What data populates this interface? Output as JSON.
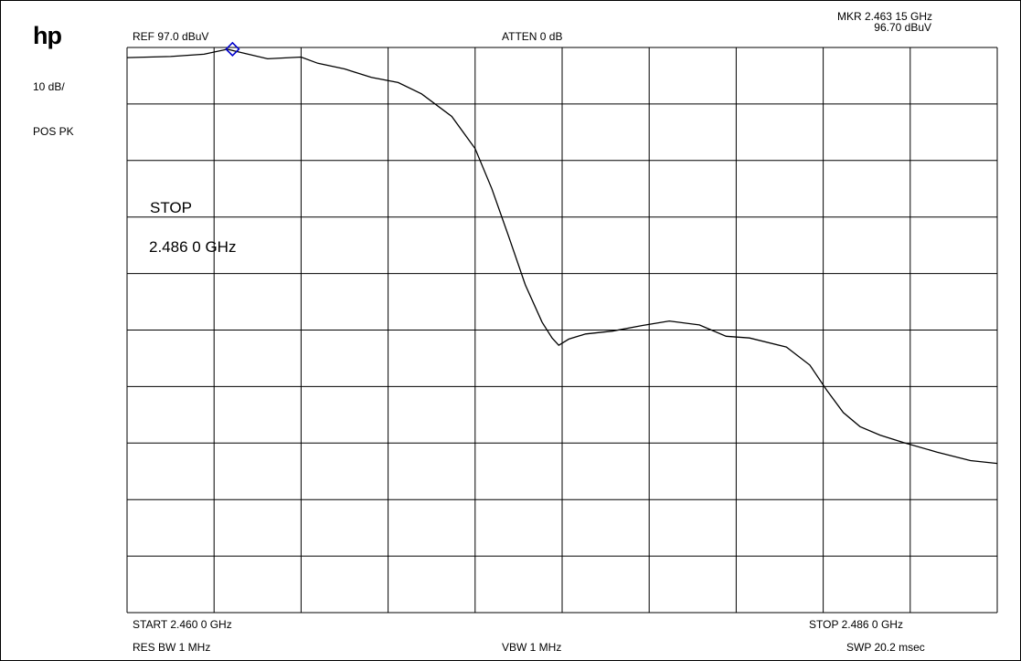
{
  "logo": "hp",
  "left_panel": {
    "scale": "10 dB/",
    "detector": "POS PK"
  },
  "header": {
    "ref": "REF  97.0 dBuV",
    "atten": "ATTEN 0 dB",
    "marker_freq": "MKR 2.463 15 GHz",
    "marker_level": "96.70 dBuV"
  },
  "annotation": {
    "line1": "STOP",
    "line2": "2.486 0 GHz"
  },
  "footer": {
    "start": "START 2.460 0 GHz",
    "stop": "STOP 2.486 0 GHz",
    "rbw": "RES BW 1 MHz",
    "vbw": "VBW 1 MHz",
    "sweep": "SWP 20.2 msec"
  },
  "colors": {
    "trace": "#000000",
    "grid": "#000000",
    "marker": "#0000cc"
  },
  "chart_data": {
    "type": "line",
    "x_unit": "GHz",
    "y_unit": "dBuV",
    "xlim": [
      2.46,
      2.486
    ],
    "ylim": [
      -3,
      97
    ],
    "grid": true,
    "divisions": {
      "x": 10,
      "y": 10
    },
    "marker": {
      "x": 2.46315,
      "y": 96.7,
      "shape": "diamond"
    },
    "series": [
      {
        "x": [
          2.46,
          2.4613,
          2.4623,
          2.463,
          2.4632,
          2.4642,
          2.4652,
          2.4657,
          2.4665,
          2.4673,
          2.4681,
          2.4688,
          2.4697,
          2.4704,
          2.4709,
          2.4714,
          2.4719,
          2.4724,
          2.4727,
          2.4729,
          2.4732,
          2.4737,
          2.4745,
          2.4754,
          2.4762,
          2.4771,
          2.4779,
          2.4786,
          2.4797,
          2.4804,
          2.4809,
          2.4814,
          2.4819,
          2.4825,
          2.4832,
          2.4842,
          2.4852,
          2.486
        ],
        "y": [
          95.2,
          95.4,
          95.8,
          96.7,
          96.4,
          95.0,
          95.3,
          94.2,
          93.2,
          91.7,
          90.8,
          88.8,
          84.8,
          79.1,
          72.0,
          63.6,
          55.0,
          48.4,
          45.6,
          44.3,
          45.4,
          46.3,
          46.8,
          47.8,
          48.6,
          47.9,
          45.9,
          45.6,
          44.0,
          40.8,
          36.4,
          32.4,
          29.9,
          28.4,
          27.1,
          25.4,
          23.9,
          23.4
        ]
      }
    ]
  }
}
